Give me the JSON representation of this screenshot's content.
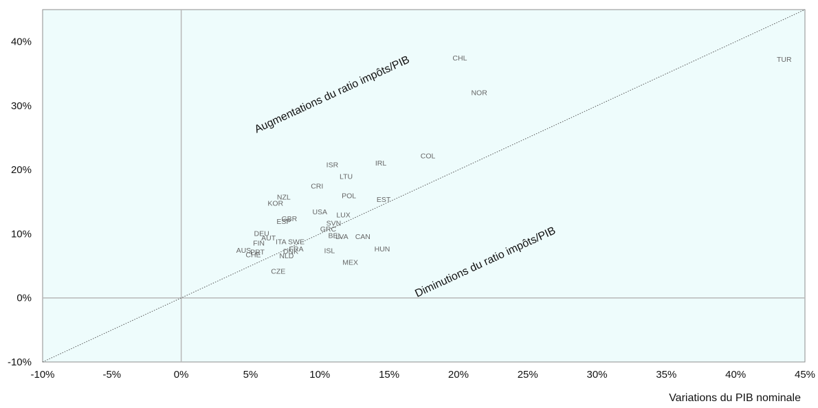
{
  "chart_data": {
    "type": "scatter",
    "title": "",
    "xlabel": "Variations du PIB nominale",
    "ylabel": "",
    "xlim": [
      -10,
      45
    ],
    "ylim": [
      -10,
      45
    ],
    "xticks": [
      -10,
      -5,
      0,
      5,
      10,
      15,
      20,
      25,
      30,
      35,
      40,
      45
    ],
    "yticks": [
      -10,
      0,
      10,
      20,
      30,
      40
    ],
    "tick_format": "{v}%",
    "grid": false,
    "reference_line": "y = x (dotted)",
    "annotations": [
      {
        "text": "Augmentations du ratio impôts/PIB"
      },
      {
        "text": "Diminutions du ratio impôts/PIB"
      }
    ],
    "points": [
      {
        "label": "TUR",
        "x": 43.5,
        "y": 37.3
      },
      {
        "label": "CHL",
        "x": 20.1,
        "y": 37.5
      },
      {
        "label": "NOR",
        "x": 21.5,
        "y": 32.1
      },
      {
        "label": "COL",
        "x": 17.8,
        "y": 22.2
      },
      {
        "label": "IRL",
        "x": 14.4,
        "y": 21.1
      },
      {
        "label": "ISR",
        "x": 10.9,
        "y": 20.8
      },
      {
        "label": "LTU",
        "x": 11.9,
        "y": 19.0
      },
      {
        "label": "CRI",
        "x": 9.8,
        "y": 17.5
      },
      {
        "label": "POL",
        "x": 12.1,
        "y": 16.0
      },
      {
        "label": "EST",
        "x": 14.6,
        "y": 15.4
      },
      {
        "label": "NZL",
        "x": 7.4,
        "y": 15.8
      },
      {
        "label": "KOR",
        "x": 6.8,
        "y": 14.8
      },
      {
        "label": "USA",
        "x": 10.0,
        "y": 13.5
      },
      {
        "label": "LUX",
        "x": 11.7,
        "y": 13.0
      },
      {
        "label": "GBR",
        "x": 7.8,
        "y": 12.4
      },
      {
        "label": "ESP",
        "x": 7.4,
        "y": 12.0
      },
      {
        "label": "SVN",
        "x": 11.0,
        "y": 11.7
      },
      {
        "label": "GRC",
        "x": 10.6,
        "y": 10.8
      },
      {
        "label": "DEU",
        "x": 5.8,
        "y": 10.1
      },
      {
        "label": "BEL",
        "x": 11.1,
        "y": 9.8
      },
      {
        "label": "LVA",
        "x": 11.6,
        "y": 9.6
      },
      {
        "label": "CAN",
        "x": 13.1,
        "y": 9.6
      },
      {
        "label": "AUT",
        "x": 6.3,
        "y": 9.4
      },
      {
        "label": "FIN",
        "x": 5.6,
        "y": 8.6
      },
      {
        "label": "ITA",
        "x": 7.2,
        "y": 8.8
      },
      {
        "label": "SWE",
        "x": 8.3,
        "y": 8.8
      },
      {
        "label": "HUN",
        "x": 14.5,
        "y": 7.7
      },
      {
        "label": "FRA",
        "x": 8.3,
        "y": 7.7
      },
      {
        "label": "ISL",
        "x": 10.7,
        "y": 7.4
      },
      {
        "label": "AUS",
        "x": 4.5,
        "y": 7.5
      },
      {
        "label": "PRT",
        "x": 5.5,
        "y": 7.2
      },
      {
        "label": "DNK",
        "x": 7.9,
        "y": 7.3
      },
      {
        "label": "CHE",
        "x": 5.2,
        "y": 6.8
      },
      {
        "label": "NLD",
        "x": 7.6,
        "y": 6.6
      },
      {
        "label": "MEX",
        "x": 12.2,
        "y": 5.6
      },
      {
        "label": "CZE",
        "x": 7.0,
        "y": 4.2
      }
    ]
  }
}
